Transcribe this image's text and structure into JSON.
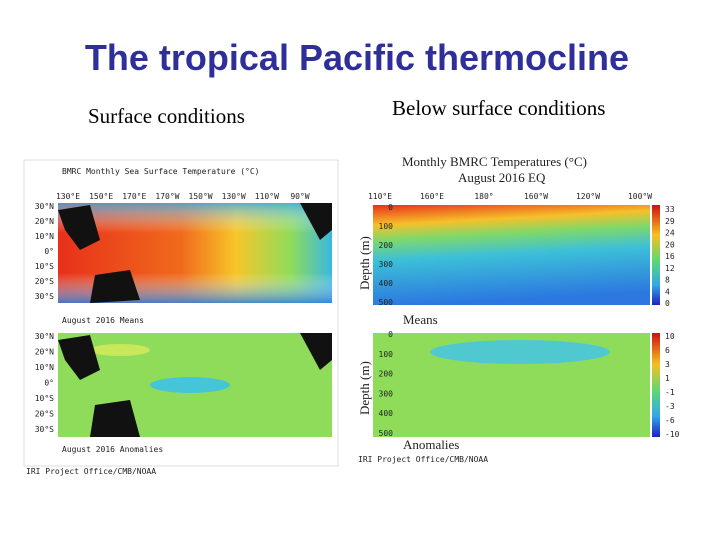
{
  "title": "The tropical Pacific thermocline",
  "left": {
    "heading": "Surface conditions",
    "map_title": "BMRC Monthly Sea Surface Temperature (°C)",
    "lon_labels": [
      "130°E",
      "150°E",
      "170°E",
      "170°W",
      "150°W",
      "130°W",
      "110°W",
      "90°W"
    ],
    "lat_labels": [
      "30°N",
      "20°N",
      "10°N",
      "0°",
      "10°S",
      "20°S",
      "30°S"
    ],
    "means_caption": "August 2016 Means",
    "anomalies_caption": "August 2016 Anomalies",
    "credit": "IRI Project Office/CMB/NOAA"
  },
  "right": {
    "heading": "Below surface conditions",
    "plot_title": "Monthly BMRC Temperatures (°C)",
    "plot_subtitle": "August 2016    EQ",
    "lon_labels": [
      "110°E",
      "160°E",
      "180°",
      "160°W",
      "120°W",
      "100°W"
    ],
    "depth_label": "Depth (m)",
    "depth_ticks": [
      "0",
      "100",
      "200",
      "300",
      "400",
      "500"
    ],
    "means_caption": "Means",
    "anomalies_caption": "Anomalies",
    "means_scale": [
      "33",
      "29",
      "24",
      "20",
      "16",
      "12",
      "8",
      "4",
      "0"
    ],
    "anomaly_scale": [
      "10",
      "6",
      "3",
      "1",
      "-1",
      "-3",
      "-6",
      "-10"
    ],
    "credit": "IRI Project Office/CMB/NOAA"
  }
}
